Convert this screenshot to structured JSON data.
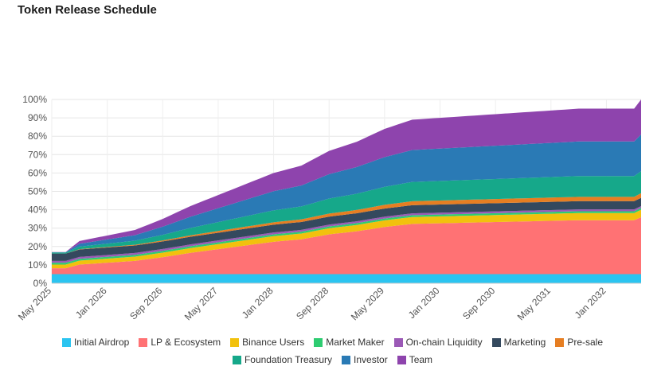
{
  "page": {
    "title": "Token Release Schedule"
  },
  "chart_data": {
    "type": "area",
    "stacked": true,
    "title": "Token Release Schedule",
    "xlabel": "",
    "ylabel": "",
    "x": [
      "May 2025",
      "Jun 2025",
      "Jul 2025",
      "Aug 2025",
      "Sep 2025",
      "Oct 2025",
      "Nov 2025",
      "Dec 2025",
      "Jan 2026",
      "Feb 2026",
      "Mar 2026",
      "Apr 2026",
      "May 2026",
      "Jun 2026",
      "Jul 2026",
      "Aug 2026",
      "Sep 2026",
      "Oct 2026",
      "Nov 2026",
      "Dec 2026",
      "Jan 2027",
      "Feb 2027",
      "Mar 2027",
      "Apr 2027",
      "May 2027",
      "Jun 2027",
      "Jul 2027",
      "Aug 2027",
      "Sep 2027",
      "Oct 2027",
      "Nov 2027",
      "Dec 2027",
      "Jan 2028",
      "Feb 2028",
      "Mar 2028",
      "Apr 2028",
      "May 2028",
      "Jun 2028",
      "Jul 2028",
      "Aug 2028",
      "Sep 2028",
      "Oct 2028",
      "Nov 2028",
      "Dec 2028",
      "Jan 2029",
      "Feb 2029",
      "Mar 2029",
      "Apr 2029",
      "May 2029",
      "Jun 2029",
      "Jul 2029",
      "Aug 2029",
      "Sep 2029",
      "Oct 2029",
      "Nov 2029",
      "Dec 2029",
      "Jan 2030",
      "Feb 2030",
      "Mar 2030",
      "Apr 2030",
      "May 2030",
      "Jun 2030",
      "Jul 2030",
      "Aug 2030",
      "Sep 2030",
      "Oct 2030",
      "Nov 2030",
      "Dec 2030",
      "Jan 2031",
      "Feb 2031",
      "Mar 2031",
      "Apr 2031",
      "May 2031",
      "Jun 2031",
      "Jul 2031",
      "Aug 2031",
      "Sep 2031",
      "Oct 2031",
      "Nov 2031",
      "Dec 2031",
      "Jan 2032",
      "Feb 2032",
      "Mar 2032",
      "Apr 2032",
      "May 2032",
      "Jun 2032"
    ],
    "x_tick_labels": [
      "May 2025",
      "Jan 2026",
      "Sep 2026",
      "May 2027",
      "Jan 2028",
      "Sep 2028",
      "May 2029",
      "Jan 2030",
      "Sep 2030",
      "May 2031",
      "Jan 2032"
    ],
    "y_tick_labels": [
      "0%",
      "10%",
      "20%",
      "30%",
      "40%",
      "50%",
      "60%",
      "70%",
      "80%",
      "90%",
      "100%"
    ],
    "ylim": [
      0,
      100
    ],
    "y_unit": "%",
    "grid": true,
    "legend_position": "bottom",
    "series": [
      {
        "name": "Initial Airdrop",
        "color": "#2bc4f0",
        "start": 5.0,
        "end": 5.0
      },
      {
        "name": "LP & Ecosystem",
        "color": "#ff7274",
        "start": 3.0,
        "end": 31.0
      },
      {
        "name": "Binance Users",
        "color": "#f2c10d",
        "start": 2.0,
        "end": 4.0
      },
      {
        "name": "Market Maker",
        "color": "#2ecc71",
        "start": 1.0,
        "end": 1.0
      },
      {
        "name": "On-chain Liquidity",
        "color": "#9b59b6",
        "start": 1.0,
        "end": 1.0
      },
      {
        "name": "Marketing",
        "color": "#34495e",
        "start": 4.0,
        "end": 4.5
      },
      {
        "name": "Pre-sale",
        "color": "#e67e22",
        "start": 0.0,
        "end": 2.5
      },
      {
        "name": "Foundation Treasury",
        "color": "#16a88a",
        "start": 0.5,
        "end": 12.0
      },
      {
        "name": "Investor",
        "color": "#2a7ab5",
        "start": 0.0,
        "end": 20.0
      },
      {
        "name": "Team",
        "color": "#8e44ad",
        "start": 0.0,
        "end": 19.0
      }
    ],
    "cumulative_total_by_month_index": {
      "0": 17,
      "2": 17,
      "4": 23,
      "8": 26,
      "12": 29,
      "16": 35,
      "20": 42,
      "24": 48,
      "28": 54,
      "32": 60,
      "36": 64,
      "40": 72,
      "44": 77,
      "48": 84,
      "52": 89,
      "56": 90,
      "60": 91,
      "64": 92,
      "68": 93,
      "72": 94,
      "76": 95,
      "80": 95,
      "84": 95,
      "85": 100
    }
  },
  "legend": {
    "row1": [
      "Initial Airdrop",
      "LP & Ecosystem",
      "Binance Users",
      "Market Maker",
      "On-chain Liquidity",
      "Marketing",
      "Pre-sale"
    ],
    "row2": [
      "Foundation Treasury",
      "Investor",
      "Team"
    ]
  }
}
